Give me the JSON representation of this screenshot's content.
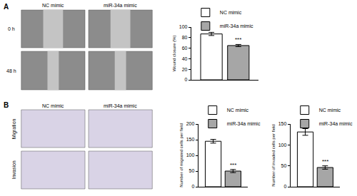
{
  "figure": {
    "panels": [
      {
        "label": "A",
        "images": {
          "columns": [
            "NC mimic",
            "miR-34a mimic"
          ],
          "rows": [
            "0 h",
            "48 h"
          ]
        }
      },
      {
        "label": "B",
        "images": {
          "columns": [
            "NC mimic",
            "miR-34a mimic"
          ],
          "rows": [
            "Migration",
            "Invasion"
          ]
        }
      }
    ]
  },
  "chart_data": [
    {
      "type": "bar",
      "ylabel": "Wound closure (%)",
      "categories": [
        null
      ],
      "series": [
        {
          "name": "NC mimic",
          "color": "#ffffff",
          "values": [
            87
          ],
          "error": [
            3
          ]
        },
        {
          "name": "miR-34a mimic",
          "color": "#a6a6a6",
          "values": [
            65
          ],
          "error": [
            2
          ]
        }
      ],
      "ylim": [
        0,
        100
      ],
      "yticks": [
        0,
        20,
        40,
        60,
        80,
        100
      ],
      "grid": false,
      "legend": "top left",
      "tick_labels": "y",
      "annotations": [
        {
          "text": "***",
          "series": "miR-34a mimic"
        }
      ]
    },
    {
      "type": "bar",
      "ylabel": "Number of migrated cells per field",
      "categories": [
        null
      ],
      "series": [
        {
          "name": "NC mimic",
          "color": "#ffffff",
          "values": [
            145
          ],
          "error": [
            6
          ]
        },
        {
          "name": "miR-34a mimic",
          "color": "#a6a6a6",
          "values": [
            50
          ],
          "error": [
            5
          ]
        }
      ],
      "ylim": [
        0,
        200
      ],
      "yticks": [
        0,
        50,
        100,
        150,
        200
      ],
      "grid": false,
      "legend": "top left",
      "tick_labels": "y",
      "annotations": [
        {
          "text": "***",
          "series": "miR-34a mimic"
        }
      ]
    },
    {
      "type": "bar",
      "ylabel": "Number of invaded cells per field",
      "categories": [
        null
      ],
      "series": [
        {
          "name": "NC mimic",
          "color": "#ffffff",
          "values": [
            131
          ],
          "error": [
            8
          ]
        },
        {
          "name": "miR-34a mimic",
          "color": "#a6a6a6",
          "values": [
            46
          ],
          "error": [
            4
          ]
        }
      ],
      "ylim": [
        0,
        150
      ],
      "yticks": [
        0,
        50,
        100,
        150
      ],
      "grid": false,
      "legend": "top left",
      "tick_labels": "y",
      "annotations": [
        {
          "text": "***",
          "series": "miR-34a mimic"
        }
      ]
    }
  ]
}
